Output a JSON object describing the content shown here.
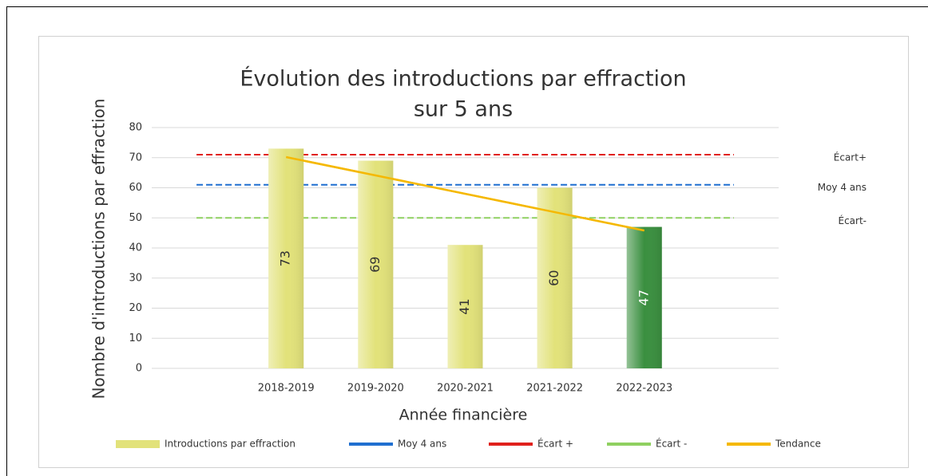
{
  "chart_data": {
    "type": "bar",
    "title": [
      "Évolution des introductions par effraction",
      "sur 5 ans"
    ],
    "y_label": "Nombre d'introductions par effraction",
    "x_label": "Année financière",
    "categories": [
      null,
      "2018-2019",
      "2019-2020",
      "2020-2021",
      "2021-2022",
      "2022-2023",
      null
    ],
    "ylim": [
      0,
      80
    ],
    "yticks": [
      0,
      10,
      20,
      30,
      40,
      50,
      60,
      70,
      80
    ],
    "grid": true,
    "series": [
      {
        "name": "Introductions par effraction",
        "kind": "bar",
        "color": "#e2e27a",
        "bar_colors": [
          null,
          "#e2e27a",
          "#e2e27a",
          "#e2e27a",
          "#e2e27a",
          "#3a8f3f",
          null
        ],
        "values": [
          null,
          73,
          69,
          41,
          60,
          47,
          null
        ]
      },
      {
        "name": "Moy 4 ans",
        "kind": "dashed",
        "color": "#1f6fd0",
        "values": [
          61,
          61,
          61,
          61,
          61,
          61,
          61
        ]
      },
      {
        "name": "Écart +",
        "kind": "dashed",
        "color": "#e0201c",
        "values": [
          71,
          71,
          71,
          71,
          71,
          71,
          71
        ]
      },
      {
        "name": "Écart -",
        "kind": "dashed",
        "color": "#8fd060",
        "values": [
          50,
          50,
          50,
          50,
          50,
          50,
          50
        ]
      },
      {
        "name": "Tendance",
        "kind": "line",
        "color": "#f5b800",
        "values": [
          null,
          70.2,
          64.1,
          58,
          51.9,
          45.8,
          null
        ]
      }
    ],
    "annotations": [
      {
        "text": "Écart+",
        "series": 2
      },
      {
        "text": "Moy 4 ans",
        "series": 1
      },
      {
        "text": "Écart-",
        "series": 3
      }
    ]
  }
}
